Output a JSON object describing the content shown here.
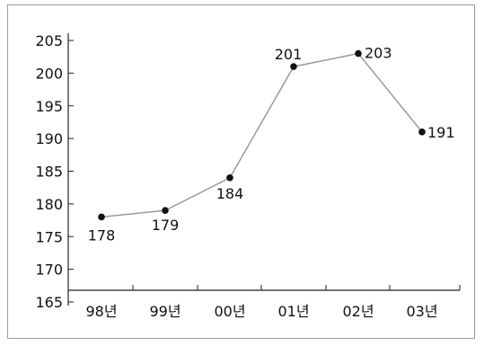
{
  "chart_data": {
    "type": "line",
    "categories": [
      "98년",
      "99년",
      "00년",
      "01년",
      "02년",
      "03년"
    ],
    "series": [
      {
        "values": [
          178,
          179,
          184,
          201,
          203,
          191
        ],
        "labels": [
          "178",
          "179",
          "184",
          "201",
          "203",
          "191"
        ]
      }
    ],
    "yticks": [
      "165",
      "170",
      "175",
      "180",
      "185",
      "190",
      "195",
      "200",
      "205"
    ],
    "ylim": [
      165,
      205
    ],
    "title": "",
    "xlabel": "",
    "ylabel": "",
    "grid": false,
    "colors": {
      "line": "#9a9a9a",
      "marker": "#111111",
      "axis": "#222222",
      "frame": "#9a9a9a"
    }
  }
}
